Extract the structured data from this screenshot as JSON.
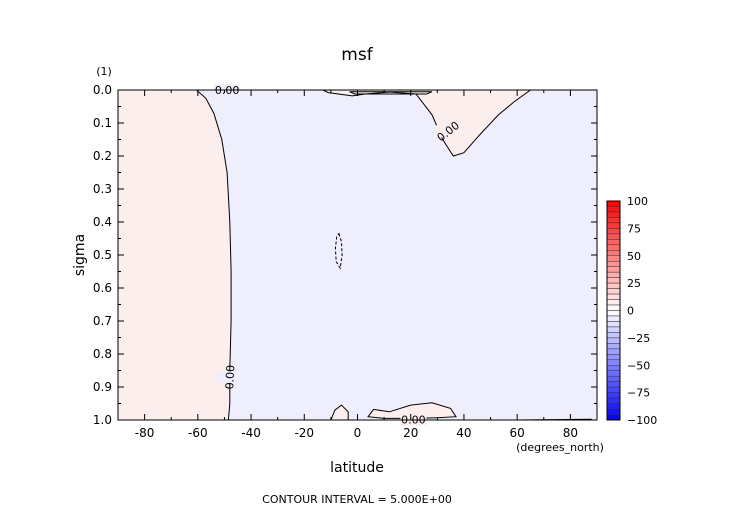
{
  "chart_data": {
    "type": "contour",
    "title": "msf",
    "xlabel": "latitude",
    "ylabel": "sigma",
    "y_unit": "(1)",
    "x_unit": "(degrees_north)",
    "xlim": [
      -90,
      90
    ],
    "ylim": [
      0.0,
      1.0
    ],
    "y_inverted": true,
    "x_ticks": [
      -80,
      -60,
      -40,
      -20,
      0,
      20,
      40,
      60,
      80
    ],
    "y_ticks": [
      0.0,
      0.1,
      0.2,
      0.3,
      0.4,
      0.5,
      0.6,
      0.7,
      0.8,
      0.9,
      1.0
    ],
    "y_tick_labels": [
      "0.0",
      "0.1",
      "0.2",
      "0.3",
      "0.4",
      "0.5",
      "0.6",
      "0.7",
      "0.8",
      "0.9",
      "1.0"
    ],
    "footer": "CONTOUR INTERVAL = 5.000E+00",
    "contour_level_labels": [
      "0.00",
      "0.00",
      "0.00",
      "0.00"
    ],
    "colorbar": {
      "min": -100,
      "max": 100,
      "step": 5,
      "tick_values": [
        100,
        75,
        50,
        25,
        0,
        -25,
        -50,
        -75,
        -100
      ],
      "tick_labels": [
        "100",
        "75",
        "50",
        "25",
        "0",
        "−25",
        "−50",
        "−75",
        "−100"
      ],
      "colormap": "blue-white-red",
      "color_min": "#0000ff",
      "color_mid": "#ffffff",
      "color_max": "#ff0000"
    },
    "regions": [
      {
        "sign": "positive",
        "color": "#fdeeee"
      },
      {
        "sign": "negative",
        "color": "#eeeefd"
      }
    ]
  }
}
